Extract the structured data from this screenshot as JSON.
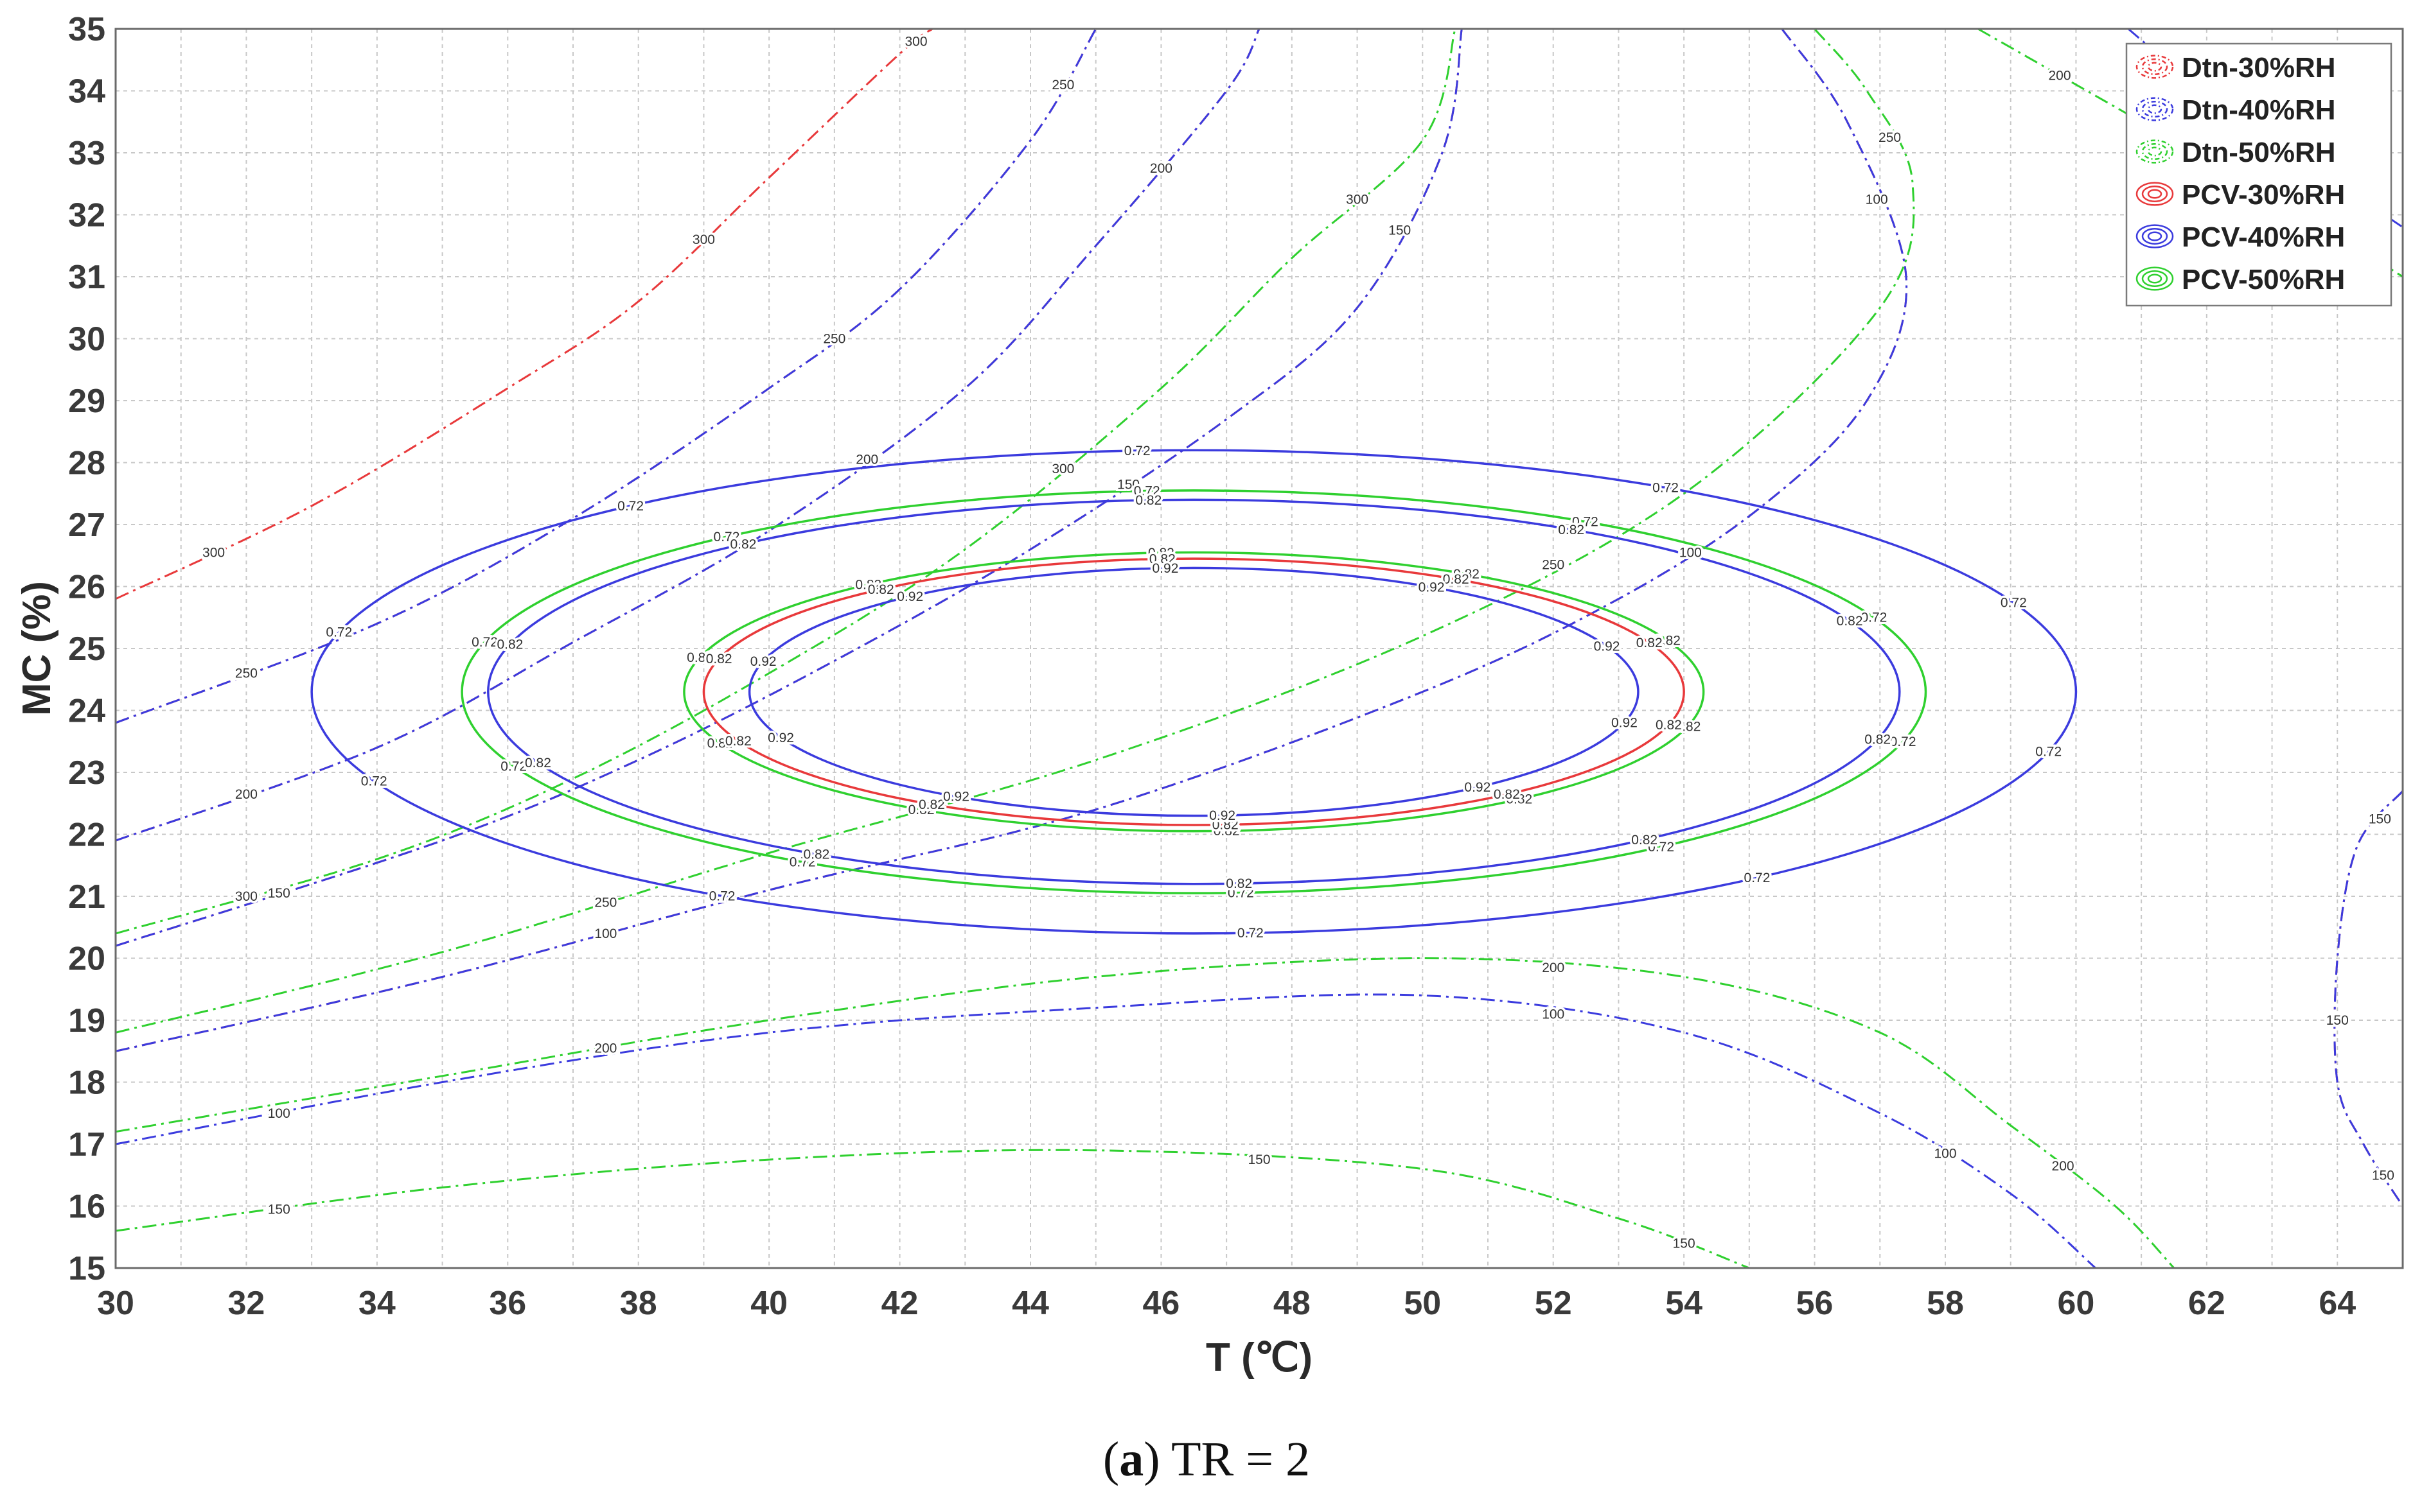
{
  "chart_data": {
    "type": "contour",
    "title": "",
    "xlabel": "T (℃)",
    "ylabel": "MC (%)",
    "xlim": [
      30,
      65
    ],
    "ylim": [
      15,
      35
    ],
    "xticks": [
      "30",
      "32",
      "34",
      "36",
      "38",
      "40",
      "42",
      "44",
      "46",
      "48",
      "50",
      "52",
      "54",
      "56",
      "58",
      "60",
      "62",
      "64"
    ],
    "yticks": [
      "15",
      "16",
      "17",
      "18",
      "19",
      "20",
      "21",
      "22",
      "23",
      "24",
      "25",
      "26",
      "27",
      "28",
      "29",
      "30",
      "31",
      "32",
      "33",
      "34",
      "35"
    ],
    "grid": true,
    "legend_position": "top-right",
    "legend": [
      {
        "label": "Dtn-30%RH",
        "color": "#e8393b",
        "style": "dashdot"
      },
      {
        "label": "Dtn-40%RH",
        "color": "#3b3bde",
        "style": "dashdot"
      },
      {
        "label": "Dtn-50%RH",
        "color": "#2fd02f",
        "style": "dashdot"
      },
      {
        "label": "PCV-30%RH",
        "color": "#e8393b",
        "style": "solid"
      },
      {
        "label": "PCV-40%RH",
        "color": "#3b3bde",
        "style": "solid"
      },
      {
        "label": "PCV-50%RH",
        "color": "#2fd02f",
        "style": "solid"
      }
    ],
    "pcv_contours": [
      {
        "series": "PCV-40%RH",
        "level": "0.72",
        "center": [
          46.5,
          24.3
        ],
        "half_width_T": 13.5,
        "half_height_MC": 3.9
      },
      {
        "series": "PCV-50%RH",
        "level": "0.72",
        "center": [
          46.5,
          24.3
        ],
        "half_width_T": 11.2,
        "half_height_MC": 3.25
      },
      {
        "series": "PCV-40%RH",
        "level": "0.82",
        "center": [
          46.5,
          24.3
        ],
        "half_width_T": 10.8,
        "half_height_MC": 3.1
      },
      {
        "series": "PCV-50%RH",
        "level": "0.82",
        "center": [
          46.5,
          24.3
        ],
        "half_width_T": 7.8,
        "half_height_MC": 2.25
      },
      {
        "series": "PCV-30%RH",
        "level": "0.82",
        "center": [
          46.5,
          24.3
        ],
        "half_width_T": 7.5,
        "half_height_MC": 2.15
      },
      {
        "series": "PCV-40%RH",
        "level": "0.92",
        "center": [
          46.5,
          24.3
        ],
        "half_width_T": 6.8,
        "half_height_MC": 2.0
      }
    ],
    "dtn_contours": [
      {
        "series": "Dtn-30%RH",
        "level": "300",
        "points": [
          [
            30,
            25.8
          ],
          [
            33,
            27.3
          ],
          [
            36,
            29.2
          ],
          [
            38,
            30.6
          ],
          [
            40,
            32.6
          ],
          [
            42,
            34.6
          ],
          [
            42.5,
            35
          ]
        ]
      },
      {
        "series": "Dtn-30%RH",
        "level": "250",
        "points": [
          [
            30,
            23.8
          ],
          [
            34,
            25.4
          ],
          [
            37,
            27.1
          ],
          [
            40,
            29.2
          ],
          [
            42,
            30.8
          ],
          [
            44,
            33.2
          ],
          [
            45,
            35
          ]
        ]
      },
      {
        "series": "Dtn-40%RH",
        "level": "250",
        "points": [
          [
            30,
            23.8
          ],
          [
            34,
            25.4
          ],
          [
            37,
            27.1
          ],
          [
            40,
            29.2
          ],
          [
            42,
            30.8
          ],
          [
            44,
            33.2
          ],
          [
            45,
            35
          ]
        ]
      },
      {
        "series": "Dtn-30%RH",
        "level": "200",
        "points": [
          [
            30,
            21.9
          ],
          [
            34,
            23.4
          ],
          [
            37,
            25.1
          ],
          [
            40,
            26.9
          ],
          [
            43,
            29.2
          ],
          [
            45,
            31.5
          ],
          [
            47,
            34
          ],
          [
            47.5,
            35
          ]
        ]
      },
      {
        "series": "Dtn-40%RH",
        "level": "200",
        "points": [
          [
            30,
            21.9
          ],
          [
            34,
            23.4
          ],
          [
            37,
            25.1
          ],
          [
            40,
            26.9
          ],
          [
            43,
            29.2
          ],
          [
            45,
            31.5
          ],
          [
            47,
            34
          ],
          [
            47.5,
            35
          ]
        ]
      },
      {
        "series": "Dtn-30%RH",
        "level": "150",
        "points": [
          [
            30,
            20.2
          ],
          [
            35,
            21.9
          ],
          [
            38,
            23.2
          ],
          [
            41,
            24.8
          ],
          [
            44,
            26.6
          ],
          [
            47,
            28.7
          ],
          [
            49,
            30.5
          ],
          [
            50.3,
            33
          ],
          [
            50.6,
            35
          ]
        ]
      },
      {
        "series": "Dtn-40%RH",
        "level": "150",
        "points": [
          [
            30,
            20.2
          ],
          [
            35,
            21.9
          ],
          [
            38,
            23.2
          ],
          [
            41,
            24.8
          ],
          [
            44,
            26.6
          ],
          [
            47,
            28.7
          ],
          [
            49,
            30.5
          ],
          [
            50.3,
            33
          ],
          [
            50.6,
            35
          ]
        ]
      },
      {
        "series": "Dtn-30%RH",
        "level": "100",
        "points": [
          [
            30,
            18.5
          ],
          [
            35,
            19.7
          ],
          [
            40,
            21.1
          ],
          [
            45,
            22.4
          ],
          [
            50,
            24.3
          ],
          [
            53,
            25.8
          ],
          [
            55.2,
            27.3
          ],
          [
            56.8,
            29
          ],
          [
            57.4,
            31
          ],
          [
            56.5,
            33.5
          ],
          [
            55.5,
            35
          ]
        ]
      },
      {
        "series": "Dtn-40%RH",
        "level": "100",
        "points": [
          [
            30,
            18.5
          ],
          [
            35,
            19.7
          ],
          [
            40,
            21.1
          ],
          [
            45,
            22.4
          ],
          [
            50,
            24.3
          ],
          [
            53,
            25.8
          ],
          [
            55.2,
            27.3
          ],
          [
            56.8,
            29
          ],
          [
            57.4,
            31
          ],
          [
            56.5,
            33.5
          ],
          [
            55.5,
            35
          ]
        ]
      },
      {
        "series": "Dtn-50%RH",
        "level": "300",
        "points": [
          [
            30,
            20.4
          ],
          [
            34,
            21.6
          ],
          [
            37,
            22.9
          ],
          [
            40,
            24.6
          ],
          [
            43,
            26.6
          ],
          [
            46,
            29.2
          ],
          [
            48,
            31.3
          ],
          [
            50,
            33.2
          ],
          [
            50.5,
            35
          ]
        ]
      },
      {
        "series": "Dtn-50%RH",
        "level": "250",
        "points": [
          [
            30,
            18.8
          ],
          [
            35,
            20.1
          ],
          [
            40,
            21.7
          ],
          [
            45,
            23.2
          ],
          [
            50,
            25.2
          ],
          [
            54,
            27.5
          ],
          [
            57,
            30.5
          ],
          [
            57.5,
            32.5
          ],
          [
            56.8,
            34
          ],
          [
            56,
            35
          ]
        ]
      },
      {
        "series": "Dtn-50%RH",
        "level": "200",
        "points": [
          [
            30,
            17.2
          ],
          [
            35,
            18.1
          ],
          [
            40,
            19.0
          ],
          [
            45,
            19.7
          ],
          [
            50,
            20.0
          ],
          [
            54,
            19.7
          ],
          [
            57,
            18.8
          ],
          [
            59,
            17.3
          ],
          [
            60.6,
            16
          ],
          [
            61.5,
            15
          ]
        ]
      },
      {
        "series": "Dtn-40%RH",
        "level": "100",
        "points": [
          [
            30,
            17.0
          ],
          [
            35,
            18.0
          ],
          [
            40,
            18.8
          ],
          [
            45,
            19.2
          ],
          [
            50,
            19.4
          ],
          [
            54,
            18.8
          ],
          [
            57,
            17.5
          ],
          [
            59,
            16.2
          ],
          [
            60.3,
            15
          ]
        ]
      },
      {
        "series": "Dtn-50%RH",
        "level": "150",
        "points": [
          [
            30,
            15.6
          ],
          [
            35,
            16.3
          ],
          [
            40,
            16.75
          ],
          [
            45,
            16.9
          ],
          [
            50,
            16.6
          ],
          [
            53,
            15.8
          ],
          [
            55,
            15
          ]
        ]
      },
      {
        "series": "Dtn-50%RH",
        "level": "200",
        "points": [
          [
            58.5,
            35
          ],
          [
            61,
            33.5
          ],
          [
            63.5,
            32
          ],
          [
            65,
            31
          ]
        ]
      },
      {
        "series": "Dtn-40%RH",
        "level": "100",
        "points": [
          [
            60.8,
            35
          ],
          [
            62.5,
            33.5
          ],
          [
            64,
            32.5
          ],
          [
            65,
            31.8
          ]
        ]
      },
      {
        "series": "Dtn-30%RH",
        "level": "150",
        "points": [
          [
            65,
            22.7
          ],
          [
            64.3,
            21.8
          ],
          [
            64,
            20
          ],
          [
            64,
            18
          ],
          [
            64.4,
            17
          ],
          [
            65,
            16
          ]
        ]
      },
      {
        "series": "Dtn-40%RH",
        "level": "150",
        "points": [
          [
            65,
            22.7
          ],
          [
            64.3,
            21.8
          ],
          [
            64,
            20
          ],
          [
            64,
            18
          ],
          [
            64.4,
            17
          ],
          [
            65,
            16
          ]
        ]
      }
    ]
  },
  "caption": {
    "letter": "a",
    "open": "(",
    "close": ")",
    "text": " TR = 2"
  }
}
